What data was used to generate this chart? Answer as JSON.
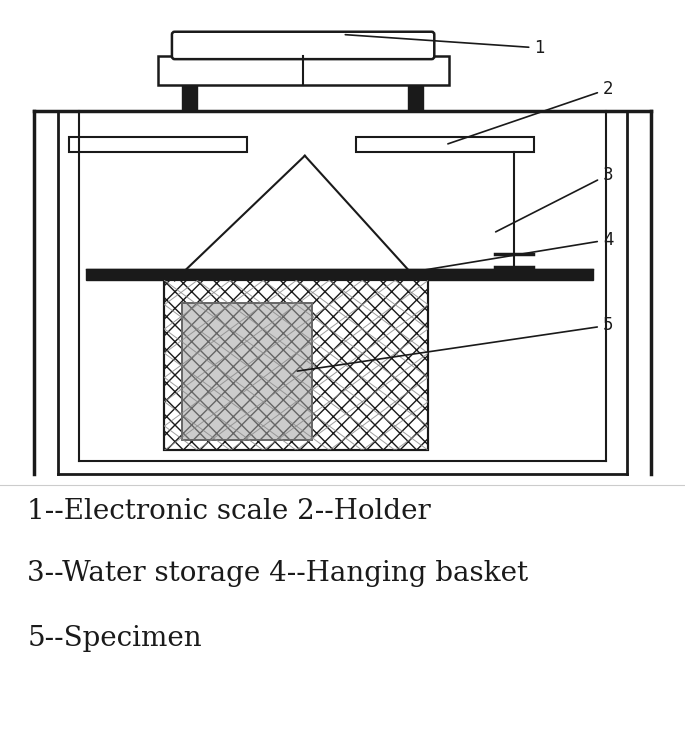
{
  "bg_color": "#ffffff",
  "line_color": "#1a1a1a",
  "figsize": [
    6.85,
    7.43
  ],
  "dpi": 100,
  "labels": {
    "line1": "1--Electronic scale 2--Holder",
    "line2": "3--Water storage 4--Hanging basket",
    "line3": "5--Specimen"
  },
  "label_fontsize": 20
}
